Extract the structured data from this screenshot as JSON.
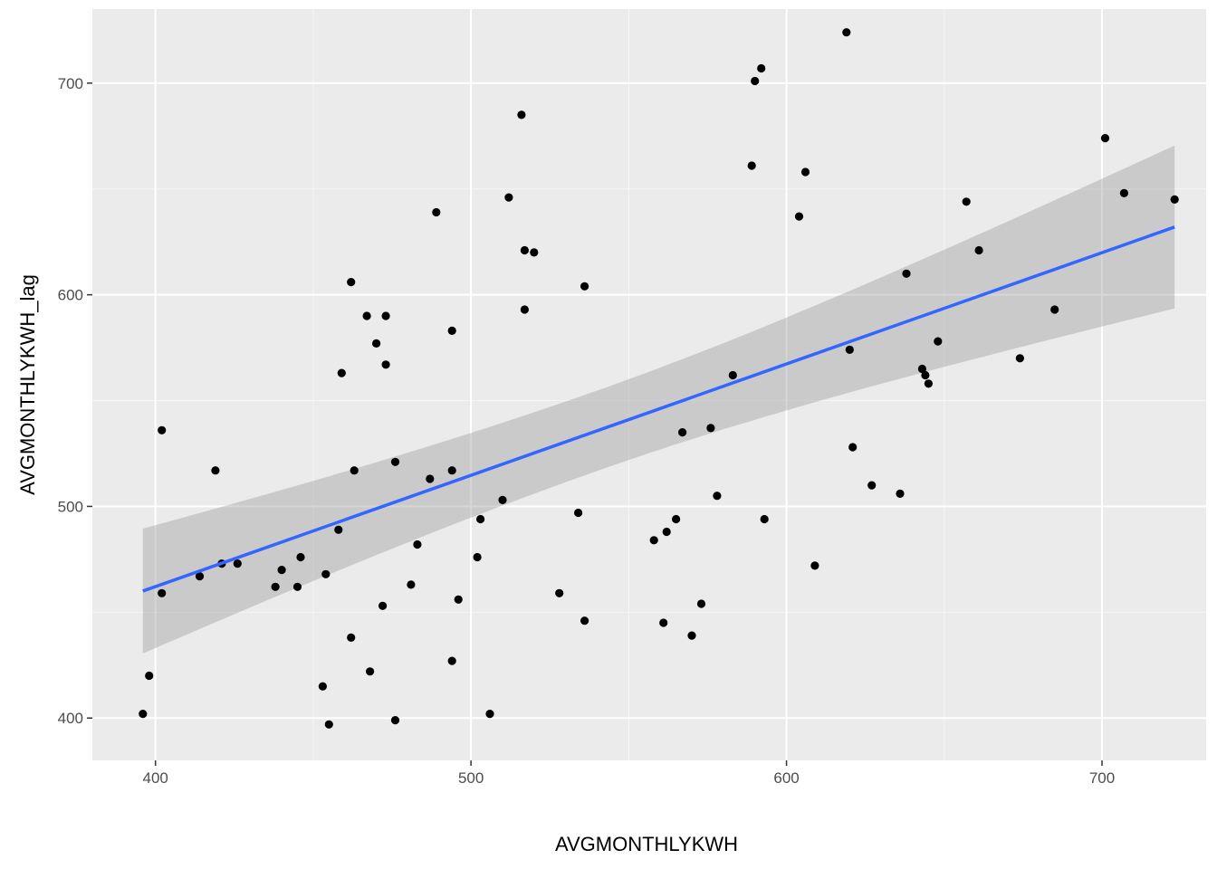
{
  "chart_data": {
    "type": "scatter",
    "xlabel": "AVGMONTHLYKWH",
    "ylabel": "AVGMONTHLYKWH_lag",
    "xlim": [
      380,
      733
    ],
    "ylim": [
      380,
      735
    ],
    "x_ticks": [
      400,
      500,
      600,
      700
    ],
    "y_ticks": [
      400,
      500,
      600,
      700
    ],
    "grid": true,
    "points": [
      [
        396,
        402
      ],
      [
        398,
        420
      ],
      [
        402,
        536
      ],
      [
        402,
        459
      ],
      [
        414,
        467
      ],
      [
        419,
        517
      ],
      [
        421,
        473
      ],
      [
        426,
        473
      ],
      [
        438,
        462
      ],
      [
        440,
        470
      ],
      [
        445,
        462
      ],
      [
        446,
        476
      ],
      [
        453,
        415
      ],
      [
        454,
        468
      ],
      [
        455,
        397
      ],
      [
        458,
        489
      ],
      [
        459,
        563
      ],
      [
        462,
        606
      ],
      [
        462,
        438
      ],
      [
        463,
        517
      ],
      [
        467,
        590
      ],
      [
        468,
        422
      ],
      [
        470,
        577
      ],
      [
        472,
        453
      ],
      [
        473,
        590
      ],
      [
        473,
        567
      ],
      [
        476,
        521
      ],
      [
        476,
        399
      ],
      [
        481,
        463
      ],
      [
        483,
        482
      ],
      [
        487,
        513
      ],
      [
        489,
        639
      ],
      [
        494,
        583
      ],
      [
        494,
        517
      ],
      [
        494,
        427
      ],
      [
        496,
        456
      ],
      [
        502,
        476
      ],
      [
        503,
        494
      ],
      [
        506,
        402
      ],
      [
        510,
        503
      ],
      [
        512,
        646
      ],
      [
        516,
        685
      ],
      [
        517,
        621
      ],
      [
        517,
        593
      ],
      [
        520,
        620
      ],
      [
        528,
        459
      ],
      [
        534,
        497
      ],
      [
        536,
        604
      ],
      [
        536,
        446
      ],
      [
        558,
        484
      ],
      [
        561,
        445
      ],
      [
        562,
        488
      ],
      [
        565,
        494
      ],
      [
        567,
        535
      ],
      [
        570,
        439
      ],
      [
        573,
        454
      ],
      [
        576,
        537
      ],
      [
        578,
        505
      ],
      [
        583,
        562
      ],
      [
        589,
        661
      ],
      [
        590,
        701
      ],
      [
        592,
        707
      ],
      [
        593,
        494
      ],
      [
        604,
        637
      ],
      [
        606,
        658
      ],
      [
        609,
        472
      ],
      [
        619,
        724
      ],
      [
        620,
        574
      ],
      [
        621,
        528
      ],
      [
        627,
        510
      ],
      [
        636,
        506
      ],
      [
        638,
        610
      ],
      [
        643,
        565
      ],
      [
        644,
        562
      ],
      [
        645,
        558
      ],
      [
        648,
        578
      ],
      [
        657,
        644
      ],
      [
        661,
        621
      ],
      [
        674,
        570
      ],
      [
        685,
        593
      ],
      [
        701,
        674
      ],
      [
        707,
        648
      ],
      [
        723,
        645
      ]
    ],
    "smooth": {
      "method": "linear",
      "color": "#3366FF",
      "x": [
        396,
        723
      ],
      "fit": [
        460,
        632
      ],
      "ci_lower": [
        430,
        594
      ],
      "ci_upper": [
        489,
        671
      ]
    },
    "colors": {
      "panel": "#EBEBEB",
      "grid_major": "#FFFFFF",
      "point": "#000000",
      "ribbon": "#999999"
    }
  }
}
